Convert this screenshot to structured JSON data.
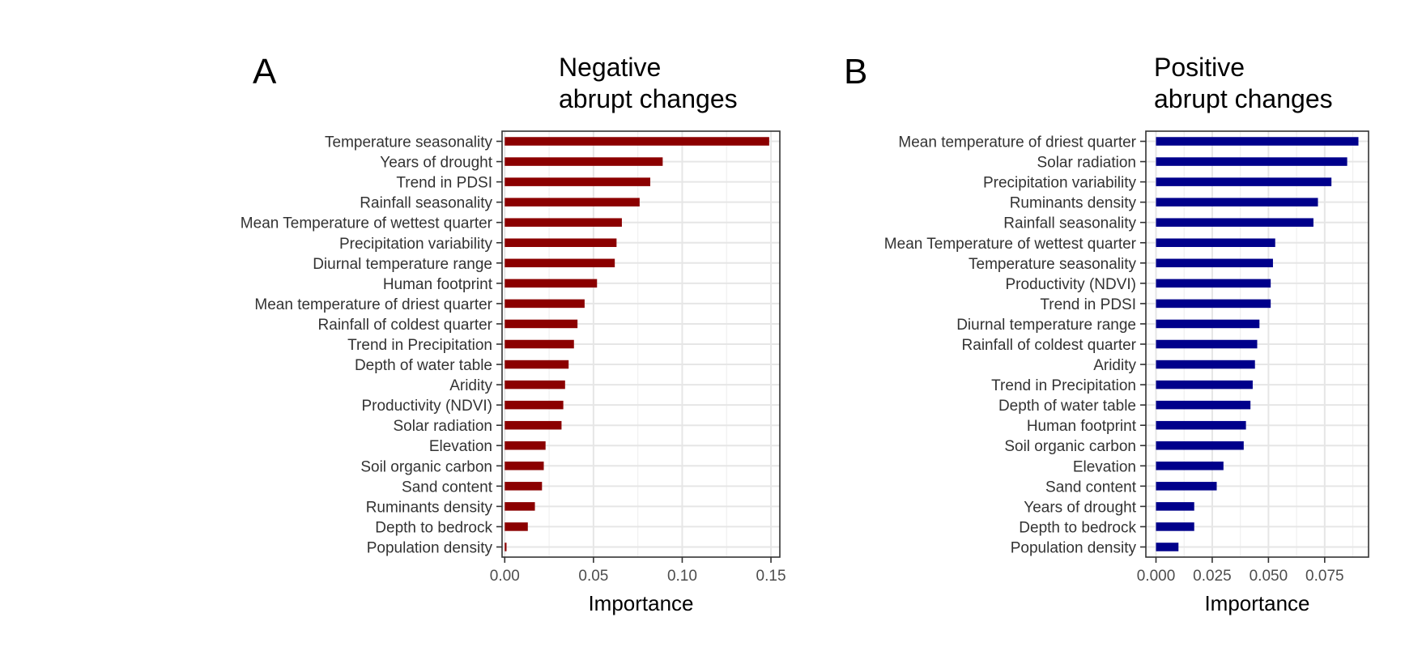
{
  "chart_data": [
    {
      "type": "bar",
      "orientation": "horizontal",
      "panel_tag": "A",
      "title_lines": [
        "Negative",
        "abrupt changes"
      ],
      "xlabel": "Importance",
      "ylabel": "",
      "xlim": [
        -0.0015,
        0.155
      ],
      "xticks": [
        0.0,
        0.05,
        0.1,
        0.15
      ],
      "xtick_labels": [
        "0.00",
        "0.05",
        "0.10",
        "0.15"
      ],
      "bar_color": "#8b0000",
      "grid": true,
      "categories": [
        "Temperature seasonality",
        "Years of drought",
        "Trend in PDSI",
        "Rainfall seasonality",
        "Mean Temperature of wettest quarter",
        "Precipitation variability",
        "Diurnal temperature range",
        "Human footprint",
        "Mean temperature of driest quarter",
        "Rainfall of coldest quarter",
        "Trend in Precipitation",
        "Depth of water table",
        "Aridity",
        "Productivity (NDVI)",
        "Solar radiation",
        "Elevation",
        "Soil organic carbon",
        "Sand content",
        "Ruminants density",
        "Depth to bedrock",
        "Population density"
      ],
      "values": [
        0.149,
        0.089,
        0.082,
        0.076,
        0.066,
        0.063,
        0.062,
        0.052,
        0.045,
        0.041,
        0.039,
        0.036,
        0.034,
        0.033,
        0.032,
        0.023,
        0.022,
        0.021,
        0.017,
        0.013,
        0.001
      ]
    },
    {
      "type": "bar",
      "orientation": "horizontal",
      "panel_tag": "B",
      "title_lines": [
        "Positive",
        "abrupt changes"
      ],
      "xlabel": "Importance",
      "ylabel": "",
      "xlim": [
        -0.0045,
        0.0945
      ],
      "xticks": [
        0.0,
        0.025,
        0.05,
        0.075
      ],
      "xtick_labels": [
        "0.000",
        "0.025",
        "0.050",
        "0.075"
      ],
      "bar_color": "#00008b",
      "grid": true,
      "categories": [
        "Mean temperature of driest quarter",
        "Solar radiation",
        "Precipitation variability",
        "Ruminants density",
        "Rainfall seasonality",
        "Mean Temperature of wettest quarter",
        "Temperature seasonality",
        "Productivity (NDVI)",
        "Trend in PDSI",
        "Diurnal temperature range",
        "Rainfall of coldest quarter",
        "Aridity",
        "Trend in Precipitation",
        "Depth of water table",
        "Human footprint",
        "Soil organic carbon",
        "Elevation",
        "Sand content",
        "Years of drought",
        "Depth to bedrock",
        "Population density"
      ],
      "values": [
        0.09,
        0.085,
        0.078,
        0.072,
        0.07,
        0.053,
        0.052,
        0.051,
        0.051,
        0.046,
        0.045,
        0.044,
        0.043,
        0.042,
        0.04,
        0.039,
        0.03,
        0.027,
        0.017,
        0.017,
        0.01
      ]
    }
  ]
}
